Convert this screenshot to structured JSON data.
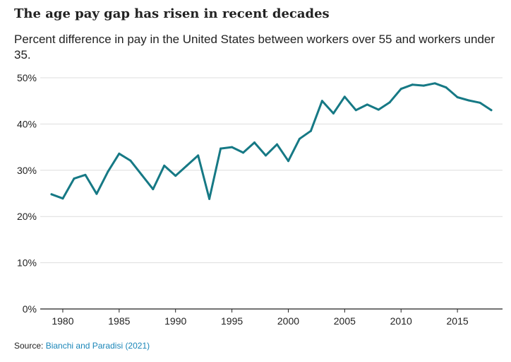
{
  "title": "The age pay gap has risen in recent decades",
  "subtitle": "Percent difference in pay in the United States between workers over 55 and workers under 35.",
  "source": {
    "label": "Source:",
    "link_text": "Bianchi and Paradisi (2021)"
  },
  "colors": {
    "line": "#167985",
    "grid": "#dddddd",
    "axis": "#222222",
    "text": "#222222",
    "link": "#1a86b8"
  },
  "chart_data": {
    "type": "line",
    "xlim": [
      1978,
      2019
    ],
    "ylim": [
      0,
      50
    ],
    "x_ticks": [
      1980,
      1985,
      1990,
      1995,
      2000,
      2005,
      2010,
      2015
    ],
    "x_tick_labels": [
      "1980",
      "1985",
      "1990",
      "1995",
      "2000",
      "2005",
      "2010",
      "2015"
    ],
    "y_ticks": [
      0,
      10,
      20,
      30,
      40,
      50
    ],
    "y_tick_labels": [
      "0%",
      "10%",
      "20%",
      "30%",
      "40%",
      "50%"
    ],
    "grid": "horizontal",
    "series": [
      {
        "x": [
          1979,
          1980,
          1981,
          1982,
          1983,
          1984,
          1985,
          1986,
          1987,
          1988,
          1989,
          1990,
          1991,
          1992,
          1993,
          1994,
          1995,
          1996,
          1997,
          1998,
          1999,
          2000,
          2001,
          2002,
          2003,
          2004,
          2005,
          2006,
          2007,
          2008,
          2009,
          2010,
          2011,
          2012,
          2013,
          2014,
          2015,
          2016,
          2017,
          2018
        ],
        "values": [
          24.8,
          23.9,
          28.2,
          29.0,
          24.9,
          29.7,
          33.6,
          32.1,
          29.0,
          25.9,
          31.0,
          28.8,
          31.0,
          33.2,
          23.8,
          34.7,
          35.0,
          33.8,
          36.0,
          33.2,
          35.6,
          32.0,
          36.8,
          38.5,
          45.0,
          42.3,
          45.9,
          43.0,
          44.2,
          43.1,
          44.7,
          47.6,
          48.5,
          48.3,
          48.8,
          47.9,
          45.8,
          45.1,
          44.6,
          43.0
        ]
      }
    ]
  }
}
